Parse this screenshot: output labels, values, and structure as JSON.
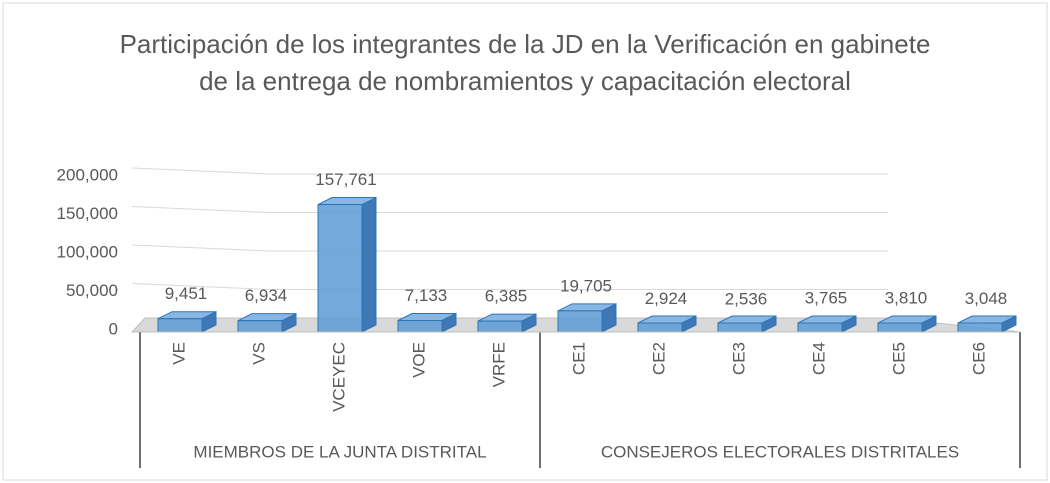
{
  "chart_data": {
    "type": "bar3d",
    "title": "Participación de los integrantes de la JD en la Verificación en gabinete de la entrega de nombramientos y capacitación electoral",
    "groups": [
      {
        "name": "MIEMBROS DE LA JUNTA DISTRITAL",
        "categories": [
          "VE",
          "VS",
          "VCEYEC",
          "VOE",
          "VRFE"
        ]
      },
      {
        "name": "CONSEJEROS ELECTORALES DISTRITALES",
        "categories": [
          "CE1",
          "CE2",
          "CE3",
          "CE4",
          "CE5",
          "CE6"
        ]
      }
    ],
    "values": [
      9451,
      6934,
      157761,
      7133,
      6385,
      19705,
      2924,
      2536,
      3765,
      3810,
      3048
    ],
    "value_labels": [
      "9,451",
      "6,934",
      "157,761",
      "7,133",
      "6,385",
      "19,705",
      "2,924",
      "2,536",
      "3,765",
      "3,810",
      "3,048"
    ],
    "color": "#5b9bd5",
    "ylim": [
      0,
      200000
    ],
    "yticks": [
      0,
      {
        "value": 50000,
        "label": "50,000"
      },
      {
        "value": 100000,
        "label": "100,000"
      },
      {
        "value": 150000,
        "label": "150,000"
      },
      {
        "value": 200000,
        "label": "200,000"
      }
    ],
    "grid": true
  }
}
